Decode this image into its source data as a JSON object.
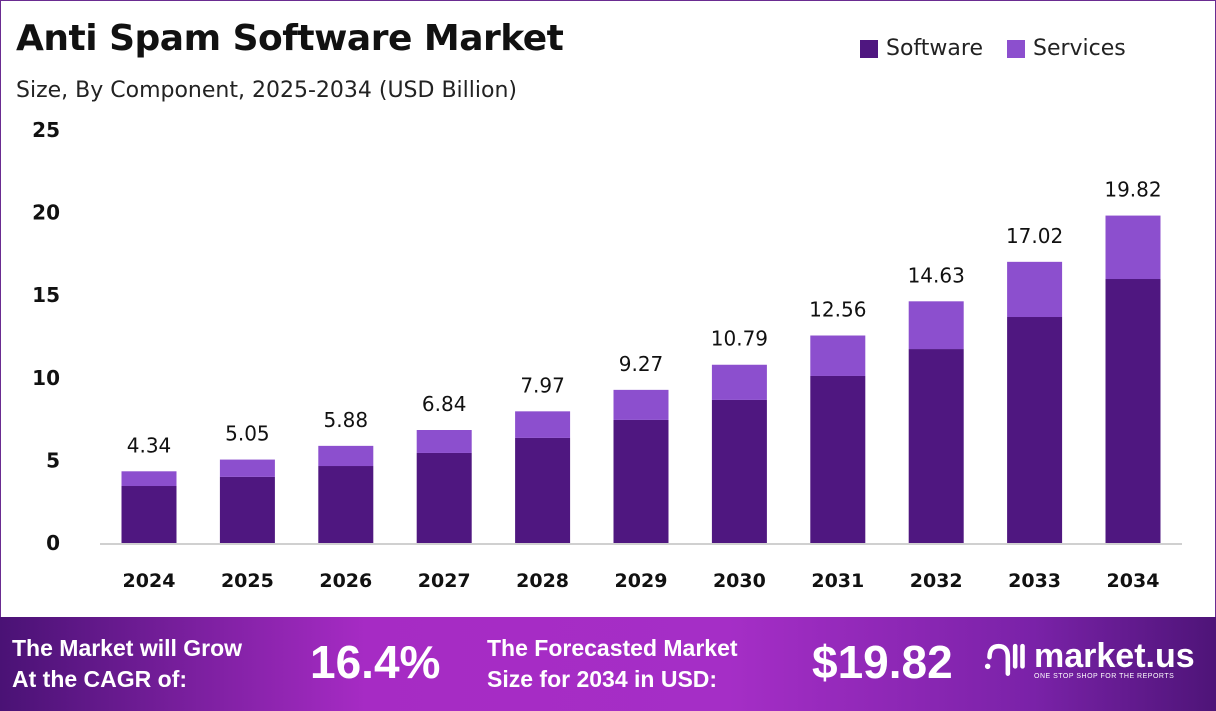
{
  "chart_data": {
    "type": "bar",
    "stacked": true,
    "title": "Anti Spam Software Market",
    "subtitle": "Size, By Component, 2025-2034 (USD Billion)",
    "categories": [
      "2024",
      "2025",
      "2026",
      "2027",
      "2028",
      "2029",
      "2030",
      "2031",
      "2032",
      "2033",
      "2034"
    ],
    "series": [
      {
        "name": "Software",
        "color": "#4f1780",
        "values": [
          3.45,
          4.0,
          4.66,
          5.45,
          6.36,
          7.45,
          8.66,
          10.11,
          11.74,
          13.68,
          15.98
        ]
      },
      {
        "name": "Services",
        "color": "#8c4fce",
        "values": [
          0.89,
          1.05,
          1.22,
          1.39,
          1.61,
          1.82,
          2.13,
          2.45,
          2.89,
          3.34,
          3.84
        ]
      }
    ],
    "totals": [
      "4.34",
      "5.05",
      "5.88",
      "6.84",
      "7.97",
      "9.27",
      "10.79",
      "12.56",
      "14.63",
      "17.02",
      "19.82"
    ],
    "yticks": [
      "0",
      "5",
      "10",
      "15",
      "20",
      "25"
    ],
    "ylim": [
      0,
      25
    ],
    "xlabel": "",
    "ylabel": "",
    "legend_position": "top-right",
    "grid": false
  },
  "footer": {
    "cagr_label_1": "The Market will Grow",
    "cagr_label_2": "At the CAGR of:",
    "cagr_value": "16.4%",
    "forecast_label_1": "The Forecasted Market",
    "forecast_label_2": "Size for 2034 in USD:",
    "forecast_value": "$19.82",
    "brand": "market.us",
    "brand_tagline": "ONE STOP SHOP FOR THE REPORTS"
  }
}
